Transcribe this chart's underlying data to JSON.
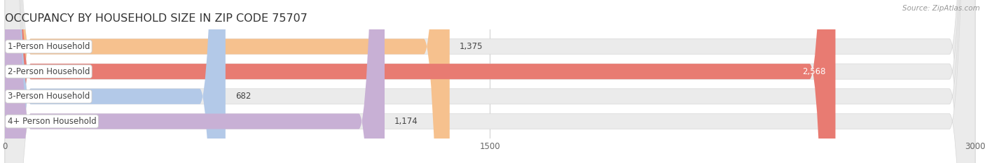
{
  "title": "OCCUPANCY BY HOUSEHOLD SIZE IN ZIP CODE 75707",
  "source_text": "Source: ZipAtlas.com",
  "categories": [
    "1-Person Household",
    "2-Person Household",
    "3-Person Household",
    "4+ Person Household"
  ],
  "values": [
    1375,
    2568,
    682,
    1174
  ],
  "bar_colors": [
    "#f6c18e",
    "#e87b72",
    "#b3c9e8",
    "#c8b0d5"
  ],
  "value_inside": [
    false,
    true,
    false,
    false
  ],
  "bar_bg_color": "#ebebeb",
  "xlim": [
    0,
    3000
  ],
  "xticks": [
    0,
    1500,
    3000
  ],
  "bar_height": 0.62,
  "bar_gap": 0.38,
  "figsize": [
    14.06,
    2.33
  ],
  "dpi": 100,
  "title_fontsize": 11.5,
  "label_fontsize": 8.5,
  "tick_fontsize": 8.5,
  "value_fontsize": 8.5
}
